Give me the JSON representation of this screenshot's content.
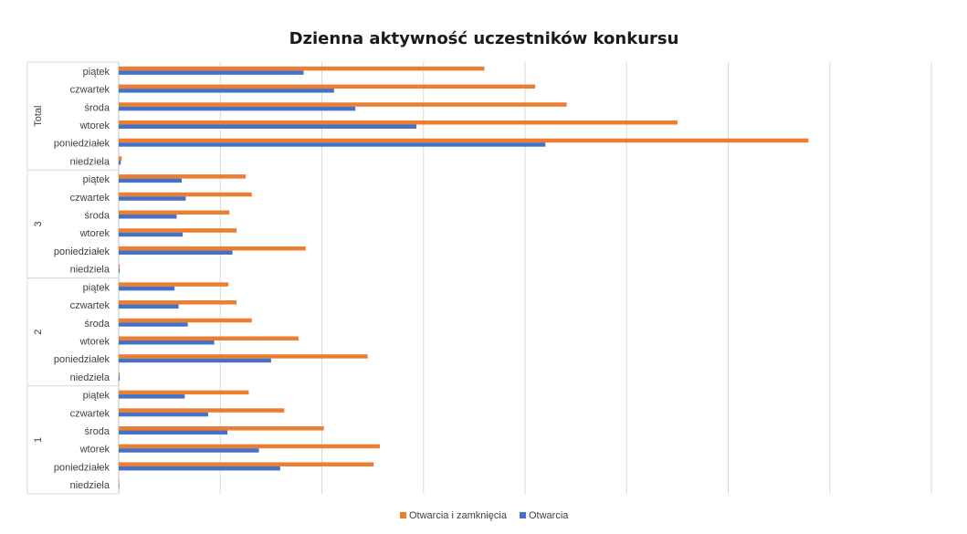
{
  "chart_data": {
    "type": "bar",
    "orientation": "horizontal",
    "title": "Dzienna aktywność uczestników konkursu",
    "xlabel": "",
    "ylabel": "",
    "xlim": [
      0,
      800
    ],
    "grid": true,
    "legend_position": "bottom",
    "groups": [
      {
        "name": "Total",
        "categories": [
          "piątek",
          "czwartek",
          "środa",
          "wtorek",
          "poniedziałek",
          "niedziela"
        ],
        "series": [
          {
            "name": "Otwarcia i zamknięcia",
            "color": "#ED7D31",
            "values": [
              360,
              410,
              441,
              550,
              679,
              3
            ]
          },
          {
            "name": "Otwarcia",
            "color": "#4472C4",
            "values": [
              182,
              212,
              233,
              293,
              420,
              2
            ]
          }
        ]
      },
      {
        "name": "3",
        "categories": [
          "piątek",
          "czwartek",
          "środa",
          "wtorek",
          "poniedziałek",
          "niedziela"
        ],
        "series": [
          {
            "name": "Otwarcia i zamknięcia",
            "color": "#ED7D31",
            "values": [
              125,
              131,
              109,
              116,
              184,
              1
            ]
          },
          {
            "name": "Otwarcia",
            "color": "#4472C4",
            "values": [
              62,
              66,
              57,
              63,
              112,
              1
            ]
          }
        ]
      },
      {
        "name": "2",
        "categories": [
          "piątek",
          "czwartek",
          "środa",
          "wtorek",
          "poniedziałek",
          "niedziela"
        ],
        "series": [
          {
            "name": "Otwarcia i zamknięcia",
            "color": "#ED7D31",
            "values": [
              108,
              116,
              131,
              177,
              245,
              1
            ]
          },
          {
            "name": "Otwarcia",
            "color": "#4472C4",
            "values": [
              55,
              59,
              68,
              94,
              150,
              1
            ]
          }
        ]
      },
      {
        "name": "1",
        "categories": [
          "piątek",
          "czwartek",
          "środa",
          "wtorek",
          "poniedziałek",
          "niedziela"
        ],
        "series": [
          {
            "name": "Otwarcia i zamknięcia",
            "color": "#ED7D31",
            "values": [
              128,
              163,
              202,
              257,
              251,
              0.5
            ]
          },
          {
            "name": "Otwarcia",
            "color": "#4472C4",
            "values": [
              65,
              88,
              107,
              138,
              159,
              0.3
            ]
          }
        ]
      }
    ],
    "legend": [
      "Otwarcia i zamknięcia",
      "Otwarcia"
    ]
  }
}
